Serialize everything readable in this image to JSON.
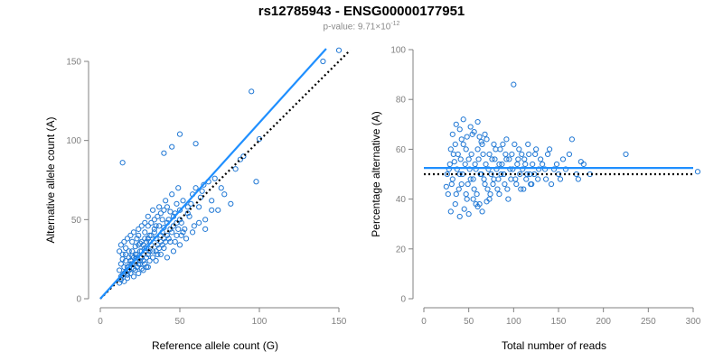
{
  "title": "rs12785943 - ENSG00000177951",
  "subtitle": {
    "prefix": "p-value: 9.71×10",
    "exponent": "-12"
  },
  "colors": {
    "points": "#1f77d4",
    "fit_line": "#1f8fff",
    "expected_line": "#000000",
    "axis": "#808080"
  },
  "chart_data": [
    {
      "type": "scatter",
      "title": "",
      "xlabel": "Reference allele count (G)",
      "ylabel": "Alternative allele count (A)",
      "xlim": [
        0,
        150
      ],
      "ylim": [
        0,
        150
      ],
      "xticks": [
        0,
        50,
        100,
        150
      ],
      "yticks": [
        0,
        50,
        100,
        150
      ],
      "grid": false,
      "fit_line": {
        "style": "solid",
        "points": [
          [
            0,
            0
          ],
          [
            142,
            158
          ]
        ]
      },
      "expected_line": {
        "style": "dotted",
        "points": [
          [
            0,
            0
          ],
          [
            157,
            157
          ]
        ]
      },
      "points": [
        [
          12,
          18
        ],
        [
          13,
          22
        ],
        [
          14,
          25
        ],
        [
          15,
          20
        ],
        [
          16,
          28
        ],
        [
          17,
          15
        ],
        [
          18,
          30
        ],
        [
          19,
          24
        ],
        [
          20,
          27
        ],
        [
          21,
          19
        ],
        [
          22,
          33
        ],
        [
          23,
          26
        ],
        [
          24,
          22
        ],
        [
          25,
          35
        ],
        [
          26,
          30
        ],
        [
          27,
          24
        ],
        [
          28,
          38
        ],
        [
          29,
          32
        ],
        [
          30,
          28
        ],
        [
          31,
          36
        ],
        [
          32,
          40
        ],
        [
          33,
          30
        ],
        [
          34,
          44
        ],
        [
          35,
          38
        ],
        [
          36,
          34
        ],
        [
          37,
          46
        ],
        [
          38,
          40
        ],
        [
          39,
          50
        ],
        [
          40,
          45
        ],
        [
          42,
          48
        ],
        [
          44,
          55
        ],
        [
          46,
          52
        ],
        [
          48,
          60
        ],
        [
          50,
          56
        ],
        [
          52,
          62
        ],
        [
          55,
          58
        ],
        [
          58,
          66
        ],
        [
          60,
          70
        ],
        [
          63,
          64
        ],
        [
          65,
          72
        ],
        [
          12,
          10
        ],
        [
          13,
          12
        ],
        [
          14,
          15
        ],
        [
          15,
          11
        ],
        [
          16,
          17
        ],
        [
          17,
          13
        ],
        [
          18,
          20
        ],
        [
          19,
          16
        ],
        [
          20,
          22
        ],
        [
          21,
          14
        ],
        [
          22,
          18
        ],
        [
          23,
          20
        ],
        [
          24,
          16
        ],
        [
          25,
          24
        ],
        [
          26,
          19
        ],
        [
          27,
          28
        ],
        [
          28,
          22
        ],
        [
          29,
          26
        ],
        [
          30,
          20
        ],
        [
          31,
          30
        ],
        [
          12,
          30
        ],
        [
          13,
          34
        ],
        [
          14,
          28
        ],
        [
          15,
          36
        ],
        [
          16,
          32
        ],
        [
          17,
          38
        ],
        [
          18,
          26
        ],
        [
          19,
          40
        ],
        [
          20,
          36
        ],
        [
          21,
          42
        ],
        [
          22,
          28
        ],
        [
          23,
          38
        ],
        [
          24,
          44
        ],
        [
          25,
          30
        ],
        [
          26,
          46
        ],
        [
          27,
          34
        ],
        [
          28,
          48
        ],
        [
          29,
          36
        ],
        [
          30,
          52
        ],
        [
          31,
          40
        ],
        [
          33,
          56
        ],
        [
          35,
          46
        ],
        [
          37,
          58
        ],
        [
          39,
          42
        ],
        [
          41,
          62
        ],
        [
          43,
          50
        ],
        [
          45,
          66
        ],
        [
          47,
          54
        ],
        [
          49,
          70
        ],
        [
          51,
          48
        ],
        [
          14,
          86
        ],
        [
          40,
          92
        ],
        [
          45,
          96
        ],
        [
          50,
          104
        ],
        [
          60,
          98
        ],
        [
          95,
          131
        ],
        [
          98,
          74
        ],
        [
          100,
          101
        ],
        [
          150,
          157
        ],
        [
          140,
          150
        ],
        [
          53,
          44
        ],
        [
          56,
          52
        ],
        [
          59,
          46
        ],
        [
          62,
          58
        ],
        [
          66,
          50
        ],
        [
          70,
          62
        ],
        [
          74,
          56
        ],
        [
          78,
          66
        ],
        [
          82,
          60
        ],
        [
          88,
          88
        ],
        [
          35,
          24
        ],
        [
          38,
          28
        ],
        [
          40,
          32
        ],
        [
          42,
          26
        ],
        [
          44,
          36
        ],
        [
          46,
          30
        ],
        [
          48,
          40
        ],
        [
          50,
          34
        ],
        [
          52,
          42
        ],
        [
          54,
          38
        ],
        [
          16,
          24
        ],
        [
          18,
          18
        ],
        [
          20,
          30
        ],
        [
          22,
          24
        ],
        [
          24,
          34
        ],
        [
          26,
          26
        ],
        [
          28,
          32
        ],
        [
          30,
          38
        ],
        [
          32,
          34
        ],
        [
          34,
          42
        ],
        [
          36,
          28
        ],
        [
          38,
          36
        ],
        [
          40,
          38
        ],
        [
          42,
          40
        ],
        [
          44,
          44
        ],
        [
          46,
          46
        ],
        [
          48,
          48
        ],
        [
          50,
          50
        ],
        [
          55,
          54
        ],
        [
          57,
          60
        ],
        [
          13,
          14
        ],
        [
          15,
          16
        ],
        [
          17,
          20
        ],
        [
          19,
          22
        ],
        [
          21,
          26
        ],
        [
          23,
          28
        ],
        [
          25,
          22
        ],
        [
          27,
          18
        ],
        [
          29,
          20
        ],
        [
          31,
          24
        ],
        [
          33,
          26
        ],
        [
          35,
          30
        ],
        [
          37,
          32
        ],
        [
          39,
          34
        ],
        [
          41,
          36
        ],
        [
          43,
          38
        ],
        [
          45,
          42
        ],
        [
          47,
          36
        ],
        [
          49,
          44
        ],
        [
          51,
          40
        ],
        [
          24,
          40
        ],
        [
          26,
          36
        ],
        [
          28,
          42
        ],
        [
          30,
          46
        ],
        [
          32,
          48
        ],
        [
          34,
          50
        ],
        [
          36,
          52
        ],
        [
          38,
          54
        ],
        [
          40,
          56
        ],
        [
          42,
          58
        ],
        [
          64,
          68
        ],
        [
          68,
          74
        ],
        [
          72,
          76
        ],
        [
          76,
          70
        ],
        [
          85,
          82
        ],
        [
          90,
          90
        ],
        [
          58,
          42
        ],
        [
          62,
          48
        ],
        [
          66,
          44
        ],
        [
          70,
          56
        ]
      ]
    },
    {
      "type": "scatter",
      "title": "",
      "xlabel": "Total number of reads",
      "ylabel": "Percentage alternative (A)",
      "xlim": [
        0,
        300
      ],
      "ylim": [
        0,
        100
      ],
      "xticks": [
        0,
        50,
        100,
        150,
        200,
        250,
        300
      ],
      "yticks": [
        0,
        20,
        40,
        60,
        80,
        100
      ],
      "grid": false,
      "fit_line": {
        "style": "solid",
        "y": 52.5
      },
      "expected_line": {
        "style": "dotted",
        "y": 50
      },
      "points": [
        [
          25,
          45
        ],
        [
          28,
          52
        ],
        [
          30,
          60
        ],
        [
          32,
          48
        ],
        [
          34,
          55
        ],
        [
          36,
          42
        ],
        [
          38,
          58
        ],
        [
          40,
          50
        ],
        [
          42,
          46
        ],
        [
          44,
          62
        ],
        [
          46,
          54
        ],
        [
          48,
          40
        ],
        [
          50,
          56
        ],
        [
          52,
          48
        ],
        [
          54,
          66
        ],
        [
          56,
          44
        ],
        [
          58,
          52
        ],
        [
          60,
          60
        ],
        [
          62,
          38
        ],
        [
          64,
          50
        ],
        [
          66,
          58
        ],
        [
          68,
          46
        ],
        [
          70,
          64
        ],
        [
          72,
          52
        ],
        [
          74,
          42
        ],
        [
          76,
          56
        ],
        [
          78,
          48
        ],
        [
          80,
          60
        ],
        [
          82,
          44
        ],
        [
          84,
          54
        ],
        [
          86,
          50
        ],
        [
          88,
          62
        ],
        [
          90,
          46
        ],
        [
          92,
          56
        ],
        [
          94,
          40
        ],
        [
          96,
          52
        ],
        [
          98,
          58
        ],
        [
          100,
          86
        ],
        [
          102,
          48
        ],
        [
          104,
          54
        ],
        [
          106,
          60
        ],
        [
          108,
          44
        ],
        [
          110,
          52
        ],
        [
          112,
          56
        ],
        [
          114,
          48
        ],
        [
          116,
          62
        ],
        [
          118,
          50
        ],
        [
          120,
          46
        ],
        [
          124,
          58
        ],
        [
          128,
          52
        ],
        [
          132,
          54
        ],
        [
          136,
          48
        ],
        [
          140,
          60
        ],
        [
          145,
          52
        ],
        [
          150,
          50
        ],
        [
          155,
          56
        ],
        [
          165,
          64
        ],
        [
          170,
          50
        ],
        [
          175,
          55
        ],
        [
          225,
          58
        ],
        [
          305,
          51
        ],
        [
          30,
          35
        ],
        [
          35,
          38
        ],
        [
          40,
          33
        ],
        [
          45,
          36
        ],
        [
          50,
          34
        ],
        [
          55,
          40
        ],
        [
          60,
          37
        ],
        [
          65,
          35
        ],
        [
          70,
          39
        ],
        [
          32,
          66
        ],
        [
          36,
          70
        ],
        [
          40,
          68
        ],
        [
          44,
          72
        ],
        [
          48,
          65
        ],
        [
          52,
          69
        ],
        [
          56,
          67
        ],
        [
          60,
          71
        ],
        [
          64,
          63
        ],
        [
          68,
          66
        ],
        [
          26,
          50
        ],
        [
          29,
          54
        ],
        [
          31,
          46
        ],
        [
          33,
          58
        ],
        [
          37,
          52
        ],
        [
          39,
          44
        ],
        [
          41,
          56
        ],
        [
          43,
          50
        ],
        [
          47,
          60
        ],
        [
          49,
          46
        ],
        [
          51,
          52
        ],
        [
          53,
          58
        ],
        [
          55,
          48
        ],
        [
          57,
          54
        ],
        [
          59,
          42
        ],
        [
          61,
          56
        ],
        [
          63,
          50
        ],
        [
          65,
          62
        ],
        [
          67,
          48
        ],
        [
          69,
          54
        ],
        [
          71,
          44
        ],
        [
          73,
          58
        ],
        [
          75,
          50
        ],
        [
          77,
          46
        ],
        [
          79,
          56
        ],
        [
          81,
          52
        ],
        [
          83,
          48
        ],
        [
          85,
          60
        ],
        [
          87,
          54
        ],
        [
          89,
          50
        ],
        [
          91,
          58
        ],
        [
          93,
          44
        ],
        [
          95,
          56
        ],
        [
          97,
          48
        ],
        [
          99,
          52
        ],
        [
          101,
          62
        ],
        [
          103,
          46
        ],
        [
          105,
          56
        ],
        [
          107,
          50
        ],
        [
          109,
          58
        ],
        [
          111,
          44
        ],
        [
          113,
          54
        ],
        [
          115,
          50
        ],
        [
          117,
          58
        ],
        [
          119,
          46
        ],
        [
          121,
          54
        ],
        [
          123,
          50
        ],
        [
          125,
          60
        ],
        [
          127,
          48
        ],
        [
          130,
          56
        ],
        [
          135,
          52
        ],
        [
          138,
          58
        ],
        [
          142,
          46
        ],
        [
          148,
          54
        ],
        [
          152,
          48
        ],
        [
          158,
          52
        ],
        [
          162,
          58
        ],
        [
          172,
          48
        ],
        [
          178,
          54
        ],
        [
          185,
          50
        ],
        [
          27,
          42
        ],
        [
          35,
          62
        ],
        [
          42,
          64
        ],
        [
          47,
          42
        ],
        [
          58,
          38
        ],
        [
          62,
          65
        ],
        [
          73,
          40
        ],
        [
          78,
          62
        ],
        [
          84,
          42
        ],
        [
          92,
          64
        ]
      ]
    }
  ]
}
